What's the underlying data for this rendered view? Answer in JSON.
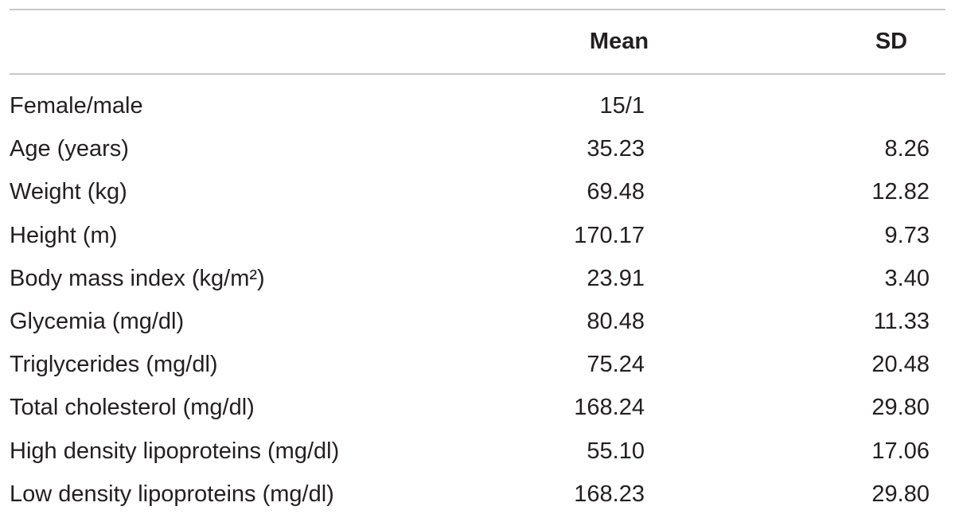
{
  "table": {
    "header": {
      "mean": "Mean",
      "sd": "SD"
    },
    "rows": [
      [
        "Female/male",
        "15/1"
      ],
      [
        "Age (years)",
        "35.23",
        "8.26"
      ],
      [
        "Weight (kg)",
        "69.48",
        "12.82"
      ],
      [
        "Height (m)",
        "170.17",
        "9.73"
      ],
      [
        "Body mass index (kg/m²)",
        "23.91",
        "3.40"
      ],
      [
        "Glycemia (mg/dl)",
        "80.48",
        "11.33"
      ],
      [
        "Triglycerides (mg/dl)",
        "75.24",
        "20.48"
      ],
      [
        "Total cholesterol (mg/dl)",
        "168.24",
        "29.80"
      ],
      [
        "High density lipoproteins (mg/dl)",
        "55.10",
        "17.06"
      ],
      [
        "Low density lipoproteins (mg/dl)",
        "168.23",
        "29.80"
      ]
    ]
  }
}
